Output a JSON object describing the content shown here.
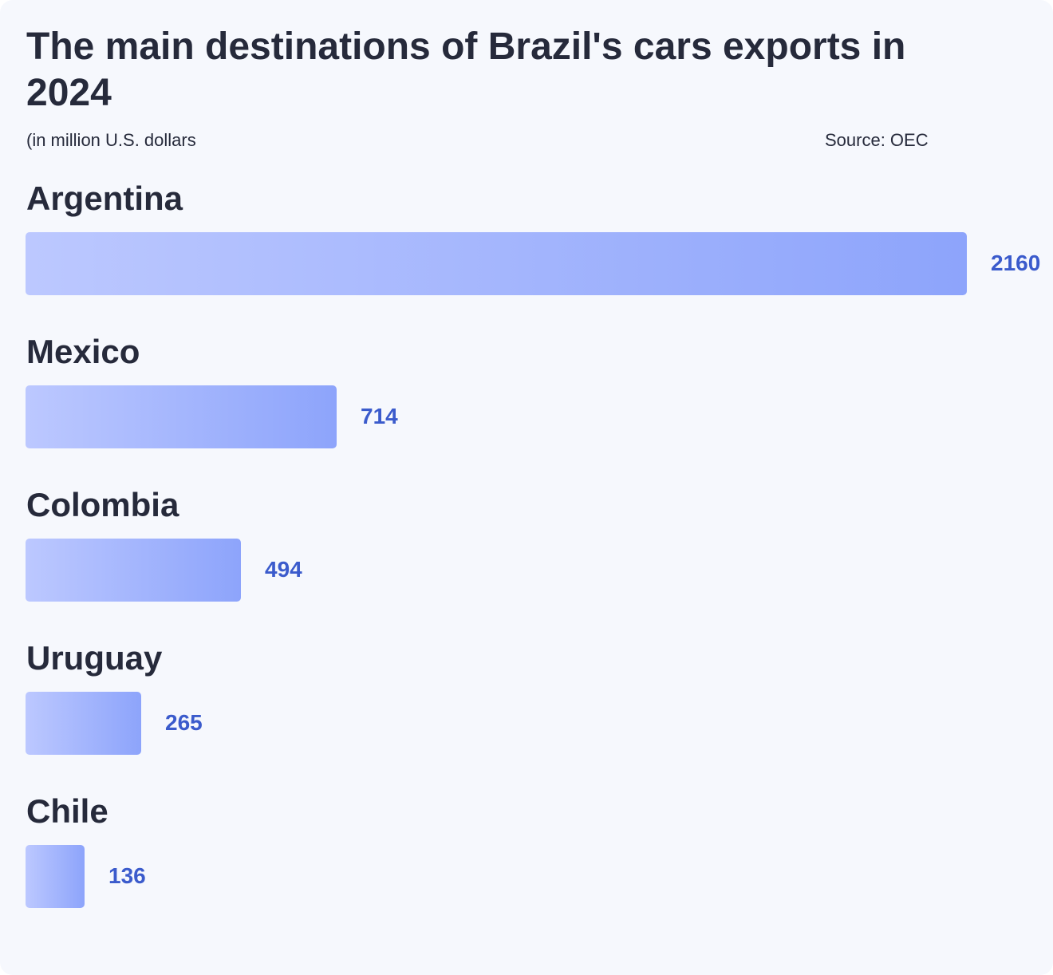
{
  "title": "The main destinations of Brazil's cars exports in 2024",
  "subtitle": "(in million U.S. dollars",
  "source": "Source: OEC",
  "colors": {
    "background": "#f6f8fd",
    "text": "#262a3b",
    "bar_start": "#bcc8ff",
    "bar_end": "#8da4fb",
    "value_label": "#3b5bcc"
  },
  "chart_data": {
    "type": "bar",
    "orientation": "horizontal",
    "title": "The main destinations of Brazil's cars exports in 2024",
    "subtitle": "(in million U.S. dollars",
    "source": "Source: OEC",
    "categories": [
      "Argentina",
      "Mexico",
      "Colombia",
      "Uruguay",
      "Chile"
    ],
    "values": [
      2160,
      714,
      494,
      265,
      136
    ],
    "xlim": [
      0,
      2160
    ],
    "grid": false,
    "legend": "none"
  }
}
